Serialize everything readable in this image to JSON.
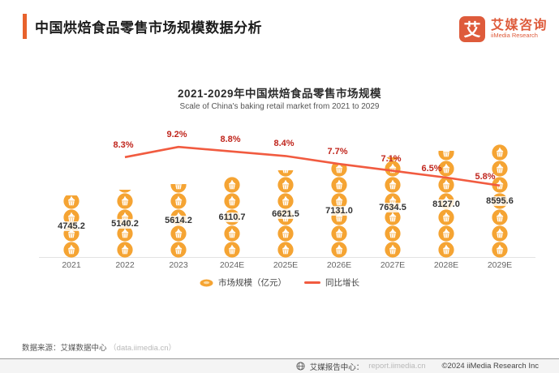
{
  "header": {
    "title": "中国烘焙食品零售市场规模数据分析"
  },
  "logo": {
    "mark": "艾",
    "name_cn": "艾媒咨询",
    "name_en": "iiMedia Research"
  },
  "chart_header": {
    "title": "2021-2029年中国烘焙食品零售市场规模",
    "subtitle": "Scale of China's baking retail market from 2021 to 2029"
  },
  "legend": {
    "market_size": "市场规模（亿元）",
    "growth": "同比增长"
  },
  "source": {
    "prefix": "数据来源：艾媒数据中心",
    "url": "（data.iimedia.cn）"
  },
  "footer": {
    "report": "艾媒报告中心：",
    "url": "report.iimedia.cn",
    "copyright": "©2024 iiMedia Research Inc"
  },
  "colors": {
    "accent": "#E8622C",
    "brand": "#DE5B3B",
    "bar_icon": "#F5A433",
    "growth_line": "#F15B40",
    "growth_label": "#C0251C"
  },
  "chart_data": {
    "type": "bar",
    "title": "2021-2029年中国烘焙食品零售市场规模",
    "subtitle": "Scale of China's baking retail market from 2021 to 2029",
    "categories": [
      "2021",
      "2022",
      "2023",
      "2024E",
      "2025E",
      "2026E",
      "2027E",
      "2028E",
      "2029E"
    ],
    "series": [
      {
        "name": "市场规模（亿元）",
        "type": "pictorial-bar",
        "values": [
          4745.2,
          5140.2,
          5614.2,
          6110.7,
          6621.5,
          7131.0,
          7634.5,
          8127.0,
          8595.6
        ]
      },
      {
        "name": "同比增长",
        "type": "line",
        "unit": "%",
        "values": [
          null,
          8.3,
          9.2,
          8.8,
          8.4,
          7.7,
          7.1,
          6.5,
          5.8
        ]
      }
    ],
    "ylabel": "亿元",
    "grid": false,
    "legend_position": "bottom"
  }
}
